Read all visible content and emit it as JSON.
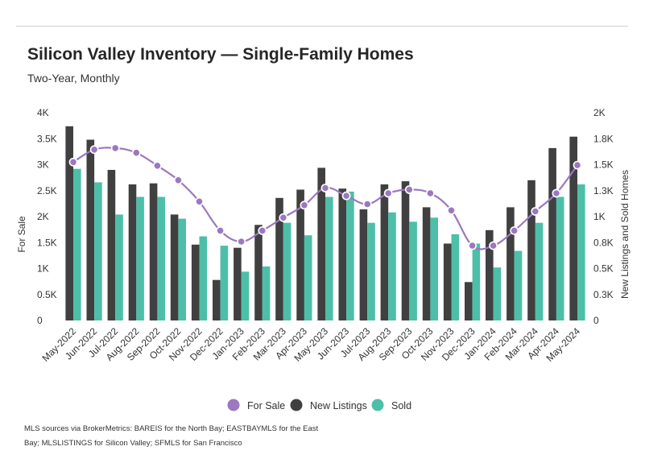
{
  "header": {
    "title": "Silicon Valley Inventory — Single-Family Homes",
    "subtitle": "Two-Year, Monthly"
  },
  "footer": {
    "note_line1": "MLS sources via BrokerMetrics: BAREIS for the North Bay; EASTBAYMLS for the East",
    "note_line2": "Bay; MLSLISTINGS for Silicon Valley; SFMLS for San Francisco"
  },
  "colors": {
    "for_sale": "#9b78bf",
    "new_listings": "#404040",
    "sold": "#4dbfa8"
  },
  "chart_data": {
    "type": "bar",
    "title": "Silicon Valley Inventory — Single-Family Homes",
    "subtitle": "Two-Year, Monthly",
    "categories": [
      "May-2022",
      "Jun-2022",
      "Jul-2022",
      "Aug-2022",
      "Sep-2022",
      "Oct-2022",
      "Nov-2022",
      "Dec-2022",
      "Jan-2023",
      "Feb-2023",
      "Mar-2023",
      "Apr-2023",
      "May-2023",
      "Jun-2023",
      "Jul-2023",
      "Aug-2023",
      "Sep-2023",
      "Oct-2023",
      "Nov-2023",
      "Dec-2023",
      "Jan-2024",
      "Feb-2024",
      "Mar-2024",
      "Apr-2024",
      "May-2024"
    ],
    "y_left": {
      "label": "For Sale",
      "range": [
        0,
        4000
      ],
      "ticks": [
        0,
        500,
        1000,
        1500,
        2000,
        2500,
        3000,
        3500,
        4000
      ],
      "tick_labels": [
        "0",
        "0.5K",
        "1K",
        "1.5K",
        "2K",
        "2.5K",
        "3K",
        "3.5K",
        "4K"
      ]
    },
    "y_right": {
      "label": "New Listings and Sold Homes",
      "range": [
        0,
        2000
      ],
      "ticks": [
        0,
        250,
        500,
        750,
        1000,
        1250,
        1500,
        1750,
        2000
      ],
      "tick_labels": [
        "0",
        "0.3K",
        "0.5K",
        "0.8K",
        "1K",
        "1.3K",
        "1.5K",
        "1.8K",
        "2K"
      ]
    },
    "series": [
      {
        "name": "For Sale",
        "kind": "line",
        "axis": "left",
        "values": [
          3050,
          3290,
          3320,
          3230,
          2980,
          2700,
          2290,
          1730,
          1520,
          1730,
          1980,
          2220,
          2550,
          2400,
          2240,
          2450,
          2520,
          2450,
          2120,
          1440,
          1440,
          1730,
          2100,
          2450,
          2990
        ]
      },
      {
        "name": "New Listings",
        "kind": "bar",
        "axis": "right",
        "values": [
          1870,
          1740,
          1450,
          1310,
          1320,
          1020,
          730,
          390,
          700,
          920,
          1180,
          1260,
          1470,
          1270,
          1070,
          1310,
          1340,
          1090,
          740,
          370,
          870,
          1090,
          1350,
          1660,
          1770
        ]
      },
      {
        "name": "Sold",
        "kind": "bar",
        "axis": "right",
        "values": [
          1460,
          1330,
          1020,
          1190,
          1190,
          980,
          810,
          720,
          470,
          520,
          940,
          820,
          1190,
          1240,
          940,
          1040,
          950,
          990,
          830,
          740,
          510,
          670,
          940,
          1190,
          1310
        ]
      }
    ],
    "legend": {
      "position": "bottom",
      "entries": [
        "For Sale",
        "New Listings",
        "Sold"
      ]
    },
    "grid": false
  }
}
